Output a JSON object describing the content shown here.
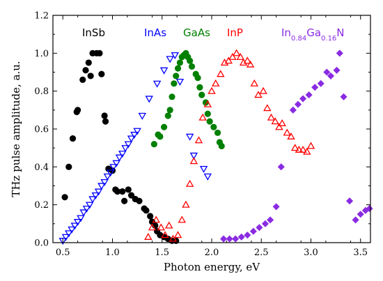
{
  "chart_data": {
    "type": "scatter",
    "xlabel": "Photon energy, eV",
    "ylabel": "THz pulse amplitude, a.u.",
    "xlim": [
      0.4,
      3.6
    ],
    "ylim": [
      0.0,
      1.2
    ],
    "xticks": [
      0.5,
      1.0,
      1.5,
      2.0,
      2.5,
      3.0,
      3.5
    ],
    "yticks": [
      0.0,
      0.2,
      0.4,
      0.6,
      0.8,
      1.0,
      1.2
    ],
    "xtick_labels": [
      "0.5",
      "1.0",
      "1.5",
      "2.0",
      "2.5",
      "3.0",
      "3.5"
    ],
    "ytick_labels": [
      "0.0",
      "0.2",
      "0.4",
      "0.6",
      "0.8",
      "1.0",
      "1.2"
    ],
    "series": [
      {
        "name": "InSb",
        "label_html": "InSb",
        "color": "#000000",
        "marker": "circle",
        "points": [
          [
            0.52,
            0.24
          ],
          [
            0.56,
            0.4
          ],
          [
            0.6,
            0.55
          ],
          [
            0.64,
            0.69
          ],
          [
            0.65,
            0.7
          ],
          [
            0.7,
            0.86
          ],
          [
            0.73,
            0.91
          ],
          [
            0.76,
            0.95
          ],
          [
            0.78,
            0.88
          ],
          [
            0.8,
            1.0
          ],
          [
            0.84,
            1.0
          ],
          [
            0.87,
            1.0
          ],
          [
            0.89,
            0.89
          ],
          [
            0.92,
            0.67
          ],
          [
            0.93,
            0.64
          ],
          [
            0.96,
            0.39
          ],
          [
            1.0,
            0.38
          ],
          [
            1.03,
            0.28
          ],
          [
            1.05,
            0.27
          ],
          [
            1.1,
            0.27
          ],
          [
            1.12,
            0.22
          ],
          [
            1.16,
            0.28
          ],
          [
            1.19,
            0.25
          ],
          [
            1.23,
            0.23
          ],
          [
            1.27,
            0.22
          ],
          [
            1.32,
            0.18
          ],
          [
            1.34,
            0.17
          ],
          [
            1.38,
            0.14
          ],
          [
            1.4,
            0.11
          ],
          [
            1.43,
            0.09
          ],
          [
            1.45,
            0.06
          ],
          [
            1.48,
            0.04
          ],
          [
            1.52,
            0.03
          ],
          [
            1.56,
            0.02
          ],
          [
            1.6,
            0.01
          ],
          [
            1.64,
            0.01
          ]
        ]
      },
      {
        "name": "InAs",
        "label_html": "InAs",
        "color": "#0000ff",
        "marker": "triangle-down",
        "points": [
          [
            0.5,
            0.01
          ],
          [
            0.53,
            0.03
          ],
          [
            0.56,
            0.05
          ],
          [
            0.59,
            0.07
          ],
          [
            0.62,
            0.09
          ],
          [
            0.65,
            0.11
          ],
          [
            0.68,
            0.13
          ],
          [
            0.71,
            0.16
          ],
          [
            0.74,
            0.18
          ],
          [
            0.77,
            0.2
          ],
          [
            0.8,
            0.23
          ],
          [
            0.83,
            0.25
          ],
          [
            0.86,
            0.27
          ],
          [
            0.89,
            0.3
          ],
          [
            0.92,
            0.32
          ],
          [
            0.95,
            0.35
          ],
          [
            0.98,
            0.37
          ],
          [
            1.01,
            0.4
          ],
          [
            1.04,
            0.42
          ],
          [
            1.07,
            0.45
          ],
          [
            1.1,
            0.47
          ],
          [
            1.13,
            0.5
          ],
          [
            1.16,
            0.52
          ],
          [
            1.19,
            0.55
          ],
          [
            1.22,
            0.57
          ],
          [
            1.25,
            0.59
          ],
          [
            1.3,
            0.67
          ],
          [
            1.37,
            0.76
          ],
          [
            1.45,
            0.84
          ],
          [
            1.52,
            0.91
          ],
          [
            1.58,
            0.97
          ],
          [
            1.63,
            0.99
          ],
          [
            1.68,
            0.85
          ],
          [
            1.78,
            0.56
          ],
          [
            1.82,
            0.46
          ],
          [
            1.92,
            0.39
          ],
          [
            1.96,
            0.35
          ]
        ]
      },
      {
        "name": "GaAs",
        "label_html": "GaAs",
        "color": "#008000",
        "marker": "circle",
        "points": [
          [
            1.42,
            0.52
          ],
          [
            1.46,
            0.57
          ],
          [
            1.48,
            0.56
          ],
          [
            1.52,
            0.61
          ],
          [
            1.56,
            0.67
          ],
          [
            1.58,
            0.7
          ],
          [
            1.6,
            0.77
          ],
          [
            1.62,
            0.84
          ],
          [
            1.64,
            0.88
          ],
          [
            1.66,
            0.92
          ],
          [
            1.68,
            0.95
          ],
          [
            1.7,
            0.98
          ],
          [
            1.72,
            0.99
          ],
          [
            1.74,
            1.0
          ],
          [
            1.76,
            0.98
          ],
          [
            1.78,
            0.96
          ],
          [
            1.8,
            0.93
          ],
          [
            1.84,
            0.89
          ],
          [
            1.86,
            0.87
          ],
          [
            1.88,
            0.82
          ],
          [
            1.9,
            0.78
          ],
          [
            1.94,
            0.74
          ],
          [
            1.96,
            0.68
          ],
          [
            1.98,
            0.64
          ],
          [
            2.02,
            0.61
          ],
          [
            2.06,
            0.58
          ],
          [
            2.08,
            0.53
          ],
          [
            2.1,
            0.51
          ]
        ]
      },
      {
        "name": "InP",
        "label_html": "InP",
        "color": "#ff0000",
        "marker": "triangle-up",
        "points": [
          [
            1.36,
            0.03
          ],
          [
            1.4,
            0.08
          ],
          [
            1.44,
            0.12
          ],
          [
            1.49,
            0.08
          ],
          [
            1.53,
            0.04
          ],
          [
            1.57,
            0.09
          ],
          [
            1.61,
            0.02
          ],
          [
            1.66,
            0.04
          ],
          [
            1.7,
            0.12
          ],
          [
            1.74,
            0.2
          ],
          [
            1.78,
            0.31
          ],
          [
            1.82,
            0.43
          ],
          [
            1.87,
            0.54
          ],
          [
            1.91,
            0.66
          ],
          [
            1.96,
            0.73
          ],
          [
            2.0,
            0.8
          ],
          [
            2.04,
            0.84
          ],
          [
            2.09,
            0.89
          ],
          [
            2.13,
            0.95
          ],
          [
            2.17,
            0.96
          ],
          [
            2.21,
            0.98
          ],
          [
            2.25,
            1.0
          ],
          [
            2.29,
            0.98
          ],
          [
            2.32,
            0.95
          ],
          [
            2.36,
            0.96
          ],
          [
            2.39,
            0.94
          ],
          [
            2.43,
            0.84
          ],
          [
            2.47,
            0.78
          ],
          [
            2.52,
            0.8
          ],
          [
            2.56,
            0.71
          ],
          [
            2.6,
            0.66
          ],
          [
            2.64,
            0.64
          ],
          [
            2.68,
            0.61
          ],
          [
            2.71,
            0.63
          ],
          [
            2.76,
            0.58
          ],
          [
            2.8,
            0.56
          ],
          [
            2.84,
            0.5
          ],
          [
            2.88,
            0.49
          ],
          [
            2.92,
            0.49
          ],
          [
            2.96,
            0.48
          ],
          [
            3.0,
            0.51
          ]
        ]
      },
      {
        "name": "In0.84Ga0.16N",
        "label_html": "In<tspan baseline-shift=\"sub\" font-size=\"10\">0.84</tspan>Ga<tspan baseline-shift=\"sub\" font-size=\"10\">0.16</tspan>N",
        "color": "#8a2be2",
        "marker": "diamond",
        "points": [
          [
            2.12,
            0.02
          ],
          [
            2.18,
            0.02
          ],
          [
            2.24,
            0.02
          ],
          [
            2.3,
            0.03
          ],
          [
            2.36,
            0.04
          ],
          [
            2.42,
            0.06
          ],
          [
            2.48,
            0.08
          ],
          [
            2.54,
            0.1
          ],
          [
            2.59,
            0.12
          ],
          [
            2.65,
            0.19
          ],
          [
            2.7,
            0.4
          ],
          [
            2.82,
            0.7
          ],
          [
            2.87,
            0.73
          ],
          [
            2.92,
            0.76
          ],
          [
            2.98,
            0.78
          ],
          [
            3.04,
            0.82
          ],
          [
            3.1,
            0.84
          ],
          [
            3.16,
            0.9
          ],
          [
            3.2,
            0.88
          ],
          [
            3.26,
            0.91
          ],
          [
            3.29,
            1.0
          ],
          [
            3.33,
            0.77
          ],
          [
            3.39,
            0.22
          ],
          [
            3.45,
            0.12
          ],
          [
            3.5,
            0.15
          ],
          [
            3.55,
            0.17
          ],
          [
            3.59,
            0.18
          ]
        ]
      }
    ]
  }
}
